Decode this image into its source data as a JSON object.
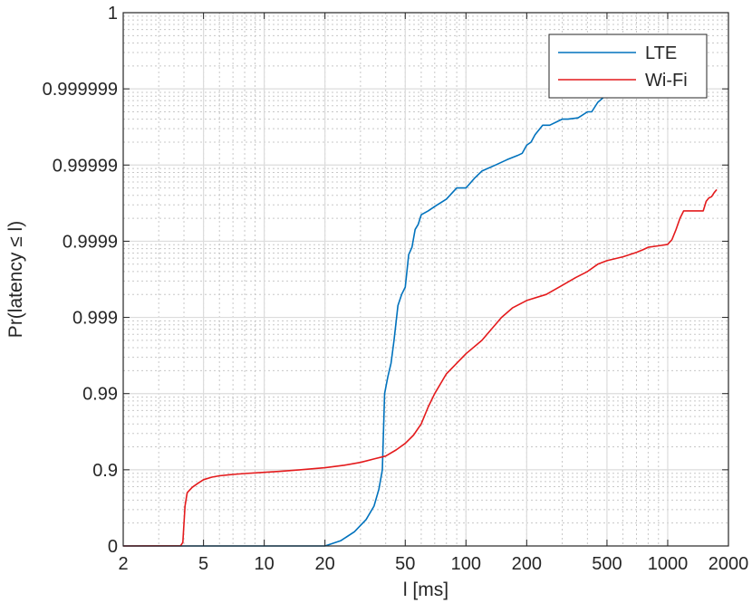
{
  "chart_data": {
    "type": "line",
    "title": "",
    "xlabel": "l [ms]",
    "ylabel": "Pr(latency ≤ l)",
    "xscale": "log",
    "yscale": "log(1/(1-p)) complementary probability",
    "xlim": [
      2,
      2000
    ],
    "xticks": [
      2,
      5,
      10,
      20,
      50,
      100,
      200,
      500,
      1000,
      2000
    ],
    "xtick_labels": [
      "2",
      "5",
      "10",
      "20",
      "50",
      "100",
      "200",
      "500",
      "1000",
      "2000"
    ],
    "ylim": [
      0,
      1
    ],
    "yticks": [
      0,
      0.9,
      0.99,
      0.999,
      0.9999,
      0.99999,
      0.999999,
      1
    ],
    "ytick_labels": [
      "0",
      "0.9",
      "0.99",
      "0.999",
      "0.9999",
      "0.99999",
      "0.999999",
      "1"
    ],
    "grid": true,
    "minor_grid": true,
    "legend_position": "top-right",
    "series": [
      {
        "name": "LTE",
        "color": "#0072BD",
        "x": [
          2,
          20,
          24,
          28,
          32,
          35,
          37,
          38.5,
          39.5,
          41,
          42.5,
          44,
          46,
          48,
          50,
          52,
          54,
          56,
          58,
          60,
          65,
          70,
          80,
          90,
          100,
          110,
          120,
          140,
          160,
          180,
          190,
          200,
          210,
          220,
          240,
          260,
          300,
          320,
          360,
          400,
          420,
          450,
          480,
          500
        ],
        "y": [
          0,
          0,
          0.15,
          0.35,
          0.55,
          0.7,
          0.82,
          0.9,
          0.99,
          0.994,
          0.996,
          0.998,
          0.9993,
          0.9995,
          0.9996,
          0.99985,
          0.99988,
          0.99993,
          0.99994,
          0.999955,
          0.99996,
          0.999965,
          0.999972,
          0.99998,
          0.99998,
          0.999985,
          0.999988,
          0.99999,
          0.9999915,
          0.9999925,
          0.999993,
          0.9999945,
          0.999995,
          0.999996,
          0.999997,
          0.999997,
          0.9999975,
          0.9999975,
          0.9999976,
          0.999998,
          0.999998,
          0.9999985,
          0.9999987,
          0.9999989
        ]
      },
      {
        "name": "Wi-Fi",
        "color": "#E41A1C",
        "x": [
          2,
          3.85,
          3.95,
          4.05,
          4.15,
          4.4,
          4.7,
          5,
          5.5,
          6,
          7,
          8,
          10,
          12,
          15,
          20,
          25,
          30,
          35,
          40,
          45,
          50,
          55,
          60,
          65,
          70,
          80,
          90,
          100,
          120,
          150,
          170,
          200,
          250,
          300,
          350,
          400,
          450,
          500,
          600,
          700,
          750,
          800,
          900,
          1000,
          1050,
          1100,
          1150,
          1200,
          1300,
          1400,
          1500,
          1550,
          1600,
          1650,
          1700,
          1750
        ],
        "y": [
          0,
          0.005,
          0.1,
          0.7,
          0.8,
          0.83,
          0.85,
          0.865,
          0.875,
          0.88,
          0.885,
          0.888,
          0.892,
          0.895,
          0.9,
          0.906,
          0.913,
          0.92,
          0.928,
          0.934,
          0.945,
          0.955,
          0.965,
          0.975,
          0.985,
          0.99,
          0.9945,
          0.996,
          0.997,
          0.998,
          0.999,
          0.99925,
          0.9994,
          0.9995,
          0.99962,
          0.9997,
          0.99975,
          0.9998,
          0.99982,
          0.99984,
          0.99986,
          0.99987,
          0.99988,
          0.999885,
          0.99989,
          0.999905,
          0.99993,
          0.99995,
          0.99996,
          0.99996,
          0.99996,
          0.99996,
          0.99997,
          0.999973,
          0.999974,
          0.999977,
          0.999979
        ]
      }
    ]
  }
}
